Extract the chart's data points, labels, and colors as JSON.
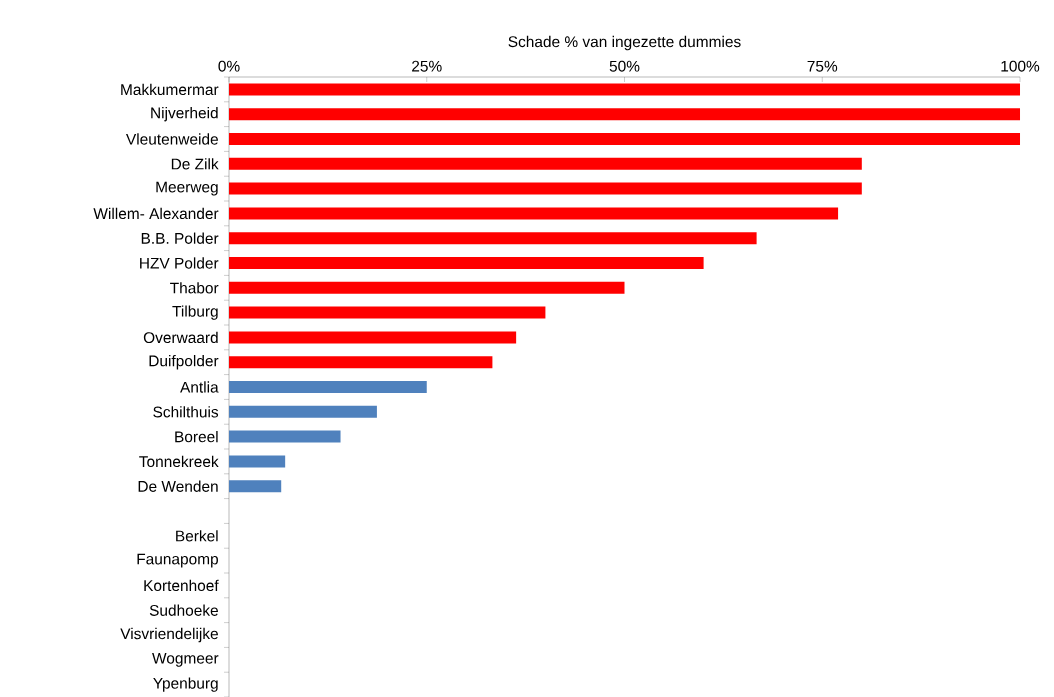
{
  "chart_data": {
    "type": "bar",
    "orientation": "horizontal",
    "xlabel": "Schade % van ingezette dummies",
    "categories": [
      "Makkumermar",
      "Nijverheid",
      "Vleutenweide",
      "De Zilk",
      "Meerweg",
      "Willem- Alexander",
      "B.B. Polder",
      "HZV Polder",
      "Thabor",
      "Tilburg",
      "Overwaard",
      "Duifpolder",
      "Antlia",
      "Schilthuis",
      "Boreel",
      "Tonnekreek",
      "De Wenden",
      null,
      "Berkel",
      "Faunapomp",
      "Kortenhoef",
      "Sudhoeke",
      "Visvriendelijke",
      "Wogmeer",
      "Ypenburg"
    ],
    "values": [
      100,
      100,
      100,
      80,
      80,
      77,
      66.7,
      60,
      50,
      40,
      36.3,
      33.3,
      25,
      18.7,
      14.1,
      7.1,
      6.6,
      0,
      0,
      0,
      0,
      0,
      0,
      0,
      0
    ],
    "colors": [
      "#ff0000",
      "#ff0000",
      "#ff0000",
      "#ff0000",
      "#ff0000",
      "#ff0000",
      "#ff0000",
      "#ff0000",
      "#ff0000",
      "#ff0000",
      "#ff0000",
      "#ff0000",
      "#4f81bd",
      "#4f81bd",
      "#4f81bd",
      "#4f81bd",
      "#4f81bd",
      "#4f81bd",
      "#4f81bd",
      "#4f81bd",
      "#4f81bd",
      "#4f81bd",
      "#4f81bd",
      "#4f81bd",
      "#4f81bd"
    ],
    "xlim": [
      0,
      100
    ],
    "xticks": [
      {
        "value": 0,
        "label": "0%"
      },
      {
        "value": 25,
        "label": "25%"
      },
      {
        "value": 50,
        "label": "50%"
      },
      {
        "value": 75,
        "label": "75%"
      },
      {
        "value": 100,
        "label": "100%"
      }
    ],
    "grid": false
  }
}
